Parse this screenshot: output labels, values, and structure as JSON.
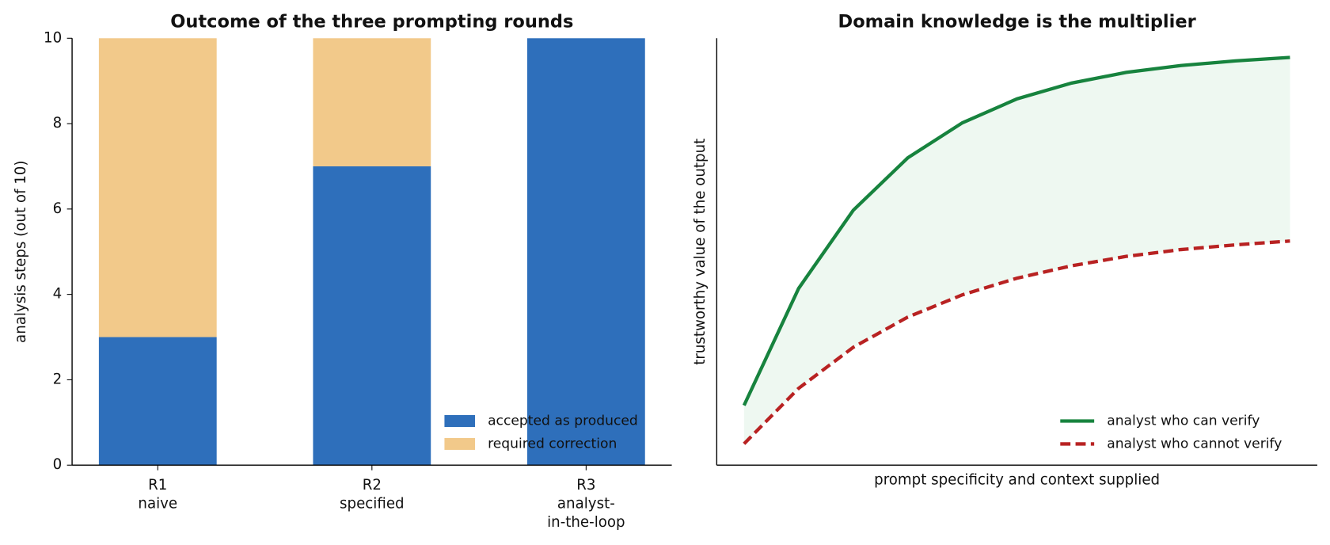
{
  "chart_data": [
    {
      "type": "stacked_bar",
      "title": "Outcome of the three prompting rounds",
      "ylabel": "analysis steps (out of 10)",
      "categories": [
        [
          "R1",
          "naive"
        ],
        [
          "R2",
          "specified"
        ],
        [
          "R3",
          "analyst-",
          "in-the-loop"
        ]
      ],
      "series": [
        {
          "name": "accepted as produced",
          "color": "#2e6fbb",
          "values": [
            3,
            7,
            10
          ]
        },
        {
          "name": "required correction",
          "color": "#f2c98a",
          "values": [
            7,
            3,
            0
          ]
        }
      ],
      "ylim": [
        0,
        10
      ],
      "yticks": [
        0,
        2,
        4,
        6,
        8,
        10
      ],
      "legend": "lower right"
    },
    {
      "type": "line",
      "title": "Domain knowledge is the multiplier",
      "xlabel": "prompt specificity and context supplied",
      "ylabel": "trustworthy value of the output",
      "x": [
        0,
        0.1,
        0.2,
        0.3,
        0.4,
        0.5,
        0.6,
        0.7,
        0.8,
        0.9,
        1.0
      ],
      "series": [
        {
          "name": "analyst who can verify",
          "color": "#17833e",
          "dash": false,
          "values": [
            0.14,
            0.414,
            0.597,
            0.72,
            0.802,
            0.858,
            0.895,
            0.92,
            0.936,
            0.947,
            0.955
          ]
        },
        {
          "name": "analyst who cannot verify",
          "color": "#b82222",
          "dash": true,
          "values": [
            0.05,
            0.18,
            0.276,
            0.347,
            0.399,
            0.438,
            0.467,
            0.489,
            0.505,
            0.516,
            0.525
          ]
        }
      ],
      "fill_between": "#eef8f1",
      "xlim": [
        -0.05,
        1.05
      ],
      "ylim": [
        0,
        1
      ],
      "legend": "lower right"
    }
  ]
}
